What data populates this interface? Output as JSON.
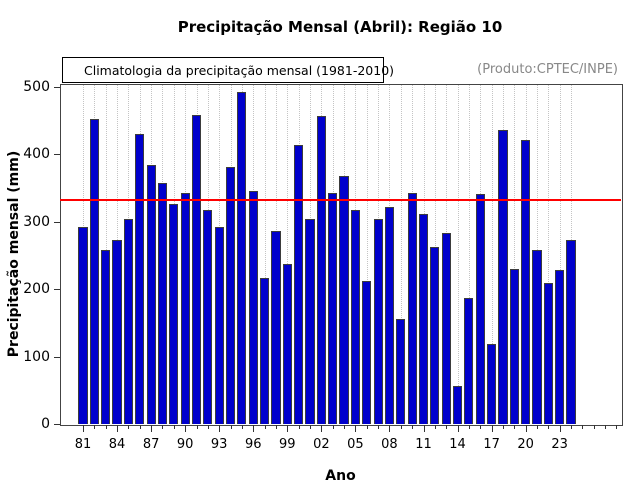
{
  "header": {
    "title": "Precipitação Mensal (Abril): Região 10"
  },
  "legend": {
    "label": "Climatologia da precipitação mensal (1981-2010)",
    "line_color": "#ff0000"
  },
  "annotation": {
    "produto": "(Produto:CPTEC/INPE)"
  },
  "chart_data": {
    "type": "bar",
    "title": "Precipitação Mensal (Abril): Região 10",
    "xlabel": "Ano",
    "ylabel": "Precipitação mensal (mm)",
    "ylim": [
      0,
      500
    ],
    "yticks": [
      0,
      100,
      200,
      300,
      400,
      500
    ],
    "x_tick_labels": [
      "81",
      "84",
      "87",
      "90",
      "93",
      "96",
      "99",
      "02",
      "05",
      "08",
      "11",
      "14",
      "17",
      "20",
      "23"
    ],
    "x_label_step": 3,
    "years": [
      1981,
      1982,
      1983,
      1984,
      1985,
      1986,
      1987,
      1988,
      1989,
      1990,
      1991,
      1992,
      1993,
      1994,
      1995,
      1996,
      1997,
      1998,
      1999,
      2000,
      2001,
      2002,
      2003,
      2004,
      2005,
      2006,
      2007,
      2008,
      2009,
      2010,
      2011,
      2012,
      2013,
      2014,
      2015,
      2016,
      2017,
      2018,
      2019,
      2020,
      2021,
      2022,
      2023,
      2024
    ],
    "values": [
      292,
      453,
      258,
      273,
      304,
      431,
      385,
      358,
      327,
      343,
      458,
      318,
      293,
      381,
      492,
      346,
      217,
      287,
      237,
      414,
      304,
      457,
      343,
      368,
      318,
      212,
      304,
      322,
      156,
      343,
      312,
      263,
      284,
      56,
      187,
      341,
      118,
      436,
      230,
      421,
      258,
      209,
      229,
      273
    ],
    "climatology_value": 333,
    "bar_color": "#0000cc",
    "bar_border_color": "#3c3c3c",
    "climatology_color": "#ff0000",
    "grid": "vertical-dotted-per-year",
    "legend_position": "top-left-above-plot"
  }
}
